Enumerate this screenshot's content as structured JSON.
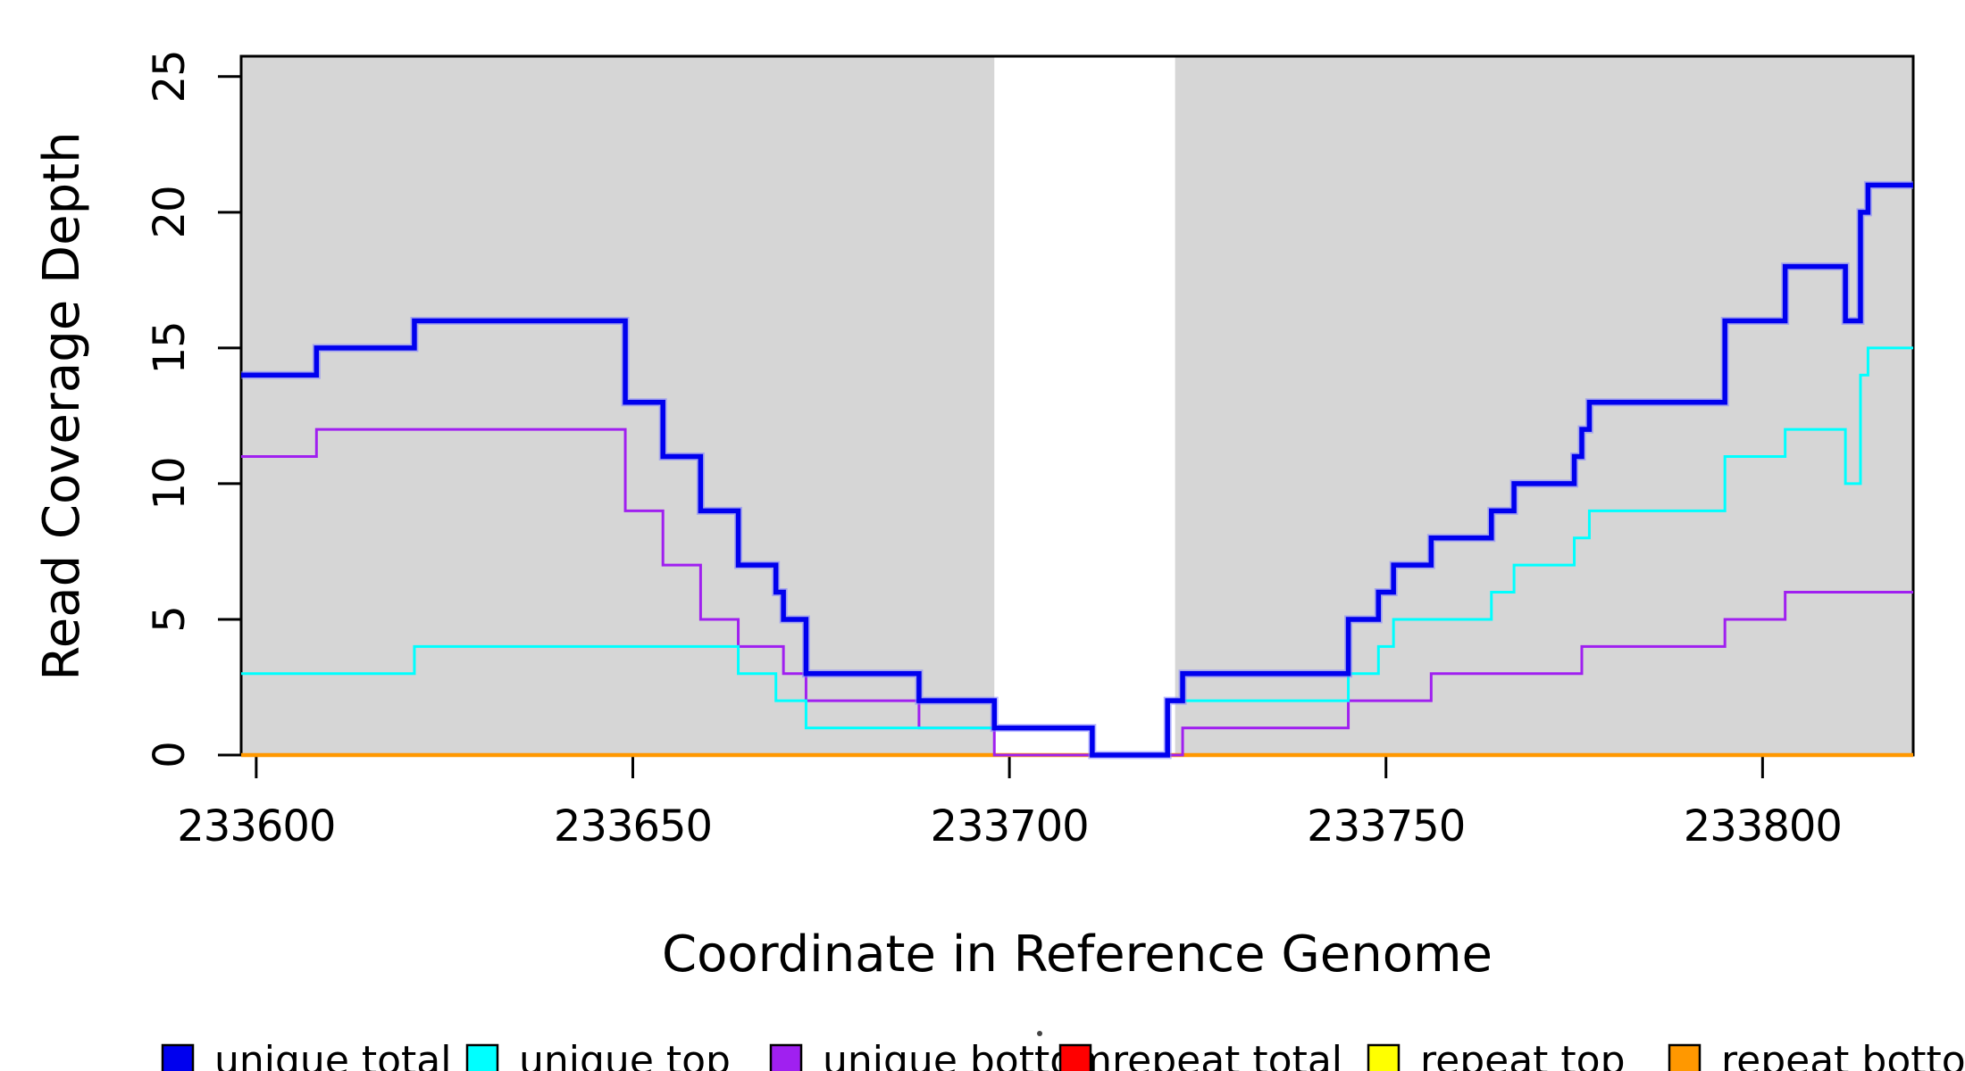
{
  "chart_data": {
    "type": "line",
    "subtype": "step",
    "title": "",
    "xlabel": "Coordinate in Reference Genome",
    "ylabel": "Read Coverage Depth",
    "x_range": [
      233598,
      233820
    ],
    "y_range": [
      0,
      25.75
    ],
    "x_ticks": [
      233600,
      233650,
      233700,
      233750,
      233800
    ],
    "y_ticks": [
      0,
      5,
      10,
      15,
      20,
      25
    ],
    "grid": "off",
    "legend_position": "bottom",
    "plot_bg": "#ffffff",
    "shade_color": "#D6D6D6",
    "axis_color": "#000000",
    "shaded_regions": [
      {
        "x0": 233598,
        "x1": 233698
      },
      {
        "x0": 233722,
        "x1": 233820
      }
    ],
    "series": [
      {
        "name": "repeat total",
        "color": "#FF0000",
        "width": 3,
        "start": 0,
        "steps": []
      },
      {
        "name": "repeat top",
        "color": "#FFFF00",
        "width": 3,
        "start": 0,
        "steps": []
      },
      {
        "name": "repeat bottom",
        "color": "#FF9800",
        "width": 4.5,
        "start": 0,
        "steps": []
      },
      {
        "name": "unique bottom",
        "color": "#A020F0",
        "width": 3,
        "start": 11,
        "steps": [
          [
            233608,
            12
          ],
          [
            233649,
            9
          ],
          [
            233654,
            7
          ],
          [
            233659,
            5
          ],
          [
            233664,
            4
          ],
          [
            233670,
            3
          ],
          [
            233673,
            2
          ],
          [
            233688,
            1
          ],
          [
            233698,
            0
          ],
          [
            233723,
            1
          ],
          [
            233745,
            2
          ],
          [
            233756,
            3
          ],
          [
            233776,
            4
          ],
          [
            233795,
            5
          ],
          [
            233803,
            6
          ]
        ]
      },
      {
        "name": "unique top",
        "color": "#00FFFF",
        "width": 3,
        "start": 3,
        "steps": [
          [
            233621,
            4
          ],
          [
            233664,
            3
          ],
          [
            233669,
            2
          ],
          [
            233673,
            1
          ],
          [
            233711,
            0
          ],
          [
            233721,
            2
          ],
          [
            233745,
            3
          ],
          [
            233749,
            4
          ],
          [
            233751,
            5
          ],
          [
            233764,
            6
          ],
          [
            233767,
            7
          ],
          [
            233775,
            8
          ],
          [
            233777,
            9
          ],
          [
            233795,
            11
          ],
          [
            233803,
            12
          ],
          [
            233811,
            10
          ],
          [
            233813,
            14
          ],
          [
            233814,
            15
          ]
        ]
      },
      {
        "name": "unique total",
        "color": "#0000EE",
        "width": 5.5,
        "start": 14,
        "halo": "#8080FF",
        "steps": [
          [
            233608,
            15
          ],
          [
            233621,
            16
          ],
          [
            233649,
            13
          ],
          [
            233654,
            11
          ],
          [
            233659,
            9
          ],
          [
            233664,
            7
          ],
          [
            233669,
            6
          ],
          [
            233670,
            5
          ],
          [
            233673,
            3
          ],
          [
            233688,
            2
          ],
          [
            233698,
            1
          ],
          [
            233711,
            0
          ],
          [
            233721,
            2
          ],
          [
            233723,
            3
          ],
          [
            233745,
            5
          ],
          [
            233749,
            6
          ],
          [
            233751,
            7
          ],
          [
            233756,
            8
          ],
          [
            233764,
            9
          ],
          [
            233767,
            10
          ],
          [
            233775,
            11
          ],
          [
            233776,
            12
          ],
          [
            233777,
            13
          ],
          [
            233795,
            16
          ],
          [
            233803,
            18
          ],
          [
            233811,
            16
          ],
          [
            233813,
            20
          ],
          [
            233814,
            21
          ]
        ]
      }
    ],
    "legend": [
      {
        "label": "unique total",
        "color": "#0000EE"
      },
      {
        "label": "unique top",
        "color": "#00FFFF"
      },
      {
        "label": "unique bottom",
        "color": "#A020F0"
      },
      {
        "label": "repeat total",
        "color": "#FF0000"
      },
      {
        "label": "repeat top",
        "color": "#FFFF00"
      },
      {
        "label": "repeat bottom",
        "color": "#FF9800"
      }
    ]
  }
}
